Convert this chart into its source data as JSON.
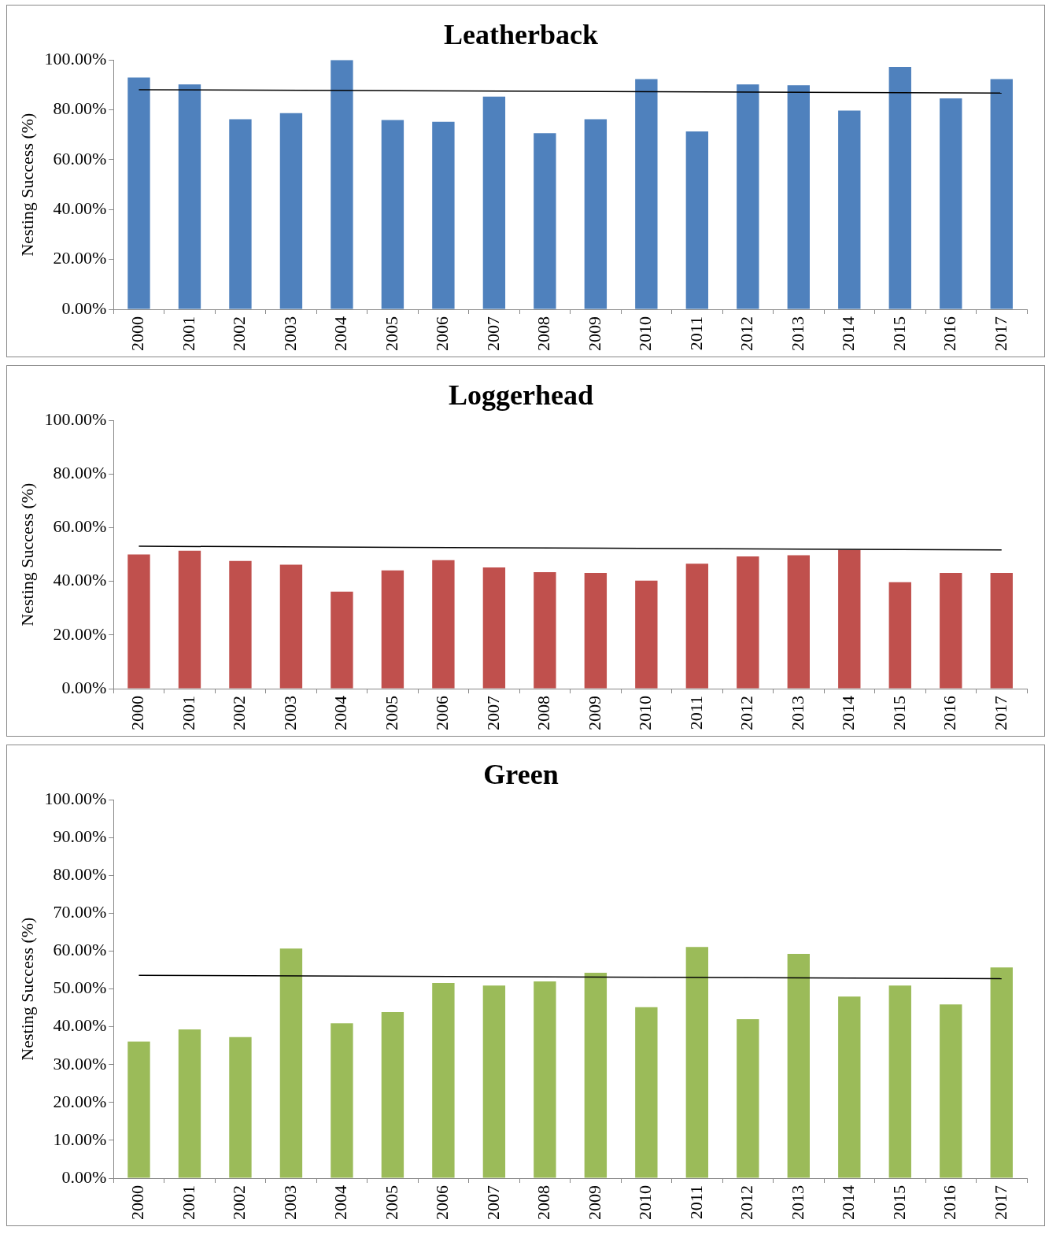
{
  "chart_data": [
    {
      "type": "bar",
      "title": "Leatherback",
      "ylabel": "Nesting Success (%)",
      "categories": [
        "2000",
        "2001",
        "2002",
        "2003",
        "2004",
        "2005",
        "2006",
        "2007",
        "2008",
        "2009",
        "2010",
        "2011",
        "2012",
        "2013",
        "2014",
        "2015",
        "2016",
        "2017"
      ],
      "series": [
        {
          "color": "#4f81bd",
          "values": [
            93.0,
            90.2,
            76.2,
            78.7,
            100,
            75.9,
            75.2,
            85.3,
            70.6,
            76.2,
            92.3,
            71.3,
            90.2,
            89.9,
            79.7,
            97.2,
            84.6,
            92.3
          ]
        },
        {
          "type": "line",
          "color": "#000000",
          "values": [
            88.1,
            null,
            null,
            null,
            null,
            null,
            null,
            null,
            null,
            null,
            null,
            null,
            null,
            null,
            null,
            null,
            null,
            86.7
          ]
        }
      ],
      "ylim": [
        0,
        100
      ],
      "yticks": [
        {
          "value": 0,
          "label": "0.00%"
        },
        {
          "value": 20,
          "label": "20.00%"
        },
        {
          "value": 40,
          "label": "40.00%"
        },
        {
          "value": 60,
          "label": "60.00%"
        },
        {
          "value": 80,
          "label": "80.00%"
        },
        {
          "value": 100,
          "label": "100.00%"
        }
      ],
      "grid": false,
      "legend": false,
      "marker": "none"
    },
    {
      "type": "bar",
      "title": "Loggerhead",
      "ylabel": "Nesting Success (%)",
      "categories": [
        "2000",
        "2001",
        "2002",
        "2003",
        "2004",
        "2005",
        "2006",
        "2007",
        "2008",
        "2009",
        "2010",
        "2011",
        "2012",
        "2013",
        "2014",
        "2015",
        "2016",
        "2017"
      ],
      "series": [
        {
          "color": "#c0504d",
          "values": [
            50.0,
            51.4,
            47.6,
            46.2,
            36.2,
            44.1,
            47.9,
            45.2,
            43.4,
            43.1,
            40.3,
            46.6,
            49.3,
            49.7,
            51.7,
            39.7,
            43.1,
            43.1
          ]
        },
        {
          "type": "line",
          "color": "#000000",
          "values": [
            53.1,
            null,
            null,
            null,
            null,
            null,
            null,
            null,
            null,
            null,
            null,
            null,
            null,
            null,
            null,
            null,
            null,
            51.7
          ]
        }
      ],
      "ylim": [
        0,
        100
      ],
      "yticks": [
        {
          "value": 0,
          "label": "0.00%"
        },
        {
          "value": 20,
          "label": "20.00%"
        },
        {
          "value": 40,
          "label": "40.00%"
        },
        {
          "value": 60,
          "label": "60.00%"
        },
        {
          "value": 80,
          "label": "80.00%"
        },
        {
          "value": 100,
          "label": "100.00%"
        }
      ],
      "grid": false,
      "legend": false,
      "marker": "none"
    },
    {
      "type": "bar",
      "title": "Green",
      "ylabel": "Nesting Success (%)",
      "categories": [
        "2000",
        "2001",
        "2002",
        "2003",
        "2004",
        "2005",
        "2006",
        "2007",
        "2008",
        "2009",
        "2010",
        "2011",
        "2012",
        "2013",
        "2014",
        "2015",
        "2016",
        "2017"
      ],
      "series": [
        {
          "color": "#9bbb59",
          "values": [
            36.1,
            39.3,
            37.3,
            60.7,
            40.9,
            43.9,
            51.6,
            50.9,
            52.0,
            54.3,
            45.2,
            61.1,
            42.0,
            59.3,
            48.0,
            50.9,
            45.9,
            55.7
          ]
        },
        {
          "type": "line",
          "color": "#000000",
          "values": [
            53.6,
            null,
            null,
            null,
            null,
            null,
            null,
            null,
            null,
            null,
            null,
            null,
            null,
            null,
            null,
            null,
            null,
            52.7
          ]
        }
      ],
      "ylim": [
        0,
        100
      ],
      "yticks": [
        {
          "value": 0,
          "label": "0.00%"
        },
        {
          "value": 10,
          "label": "10.00%"
        },
        {
          "value": 20,
          "label": "20.00%"
        },
        {
          "value": 30,
          "label": "30.00%"
        },
        {
          "value": 40,
          "label": "40.00%"
        },
        {
          "value": 50,
          "label": "50.00%"
        },
        {
          "value": 60,
          "label": "60.00%"
        },
        {
          "value": 70,
          "label": "70.00%"
        },
        {
          "value": 80,
          "label": "80.00%"
        },
        {
          "value": 90,
          "label": "90.00%"
        },
        {
          "value": 100,
          "label": "100.00%"
        }
      ],
      "grid": false,
      "legend": false,
      "marker": "none"
    }
  ]
}
